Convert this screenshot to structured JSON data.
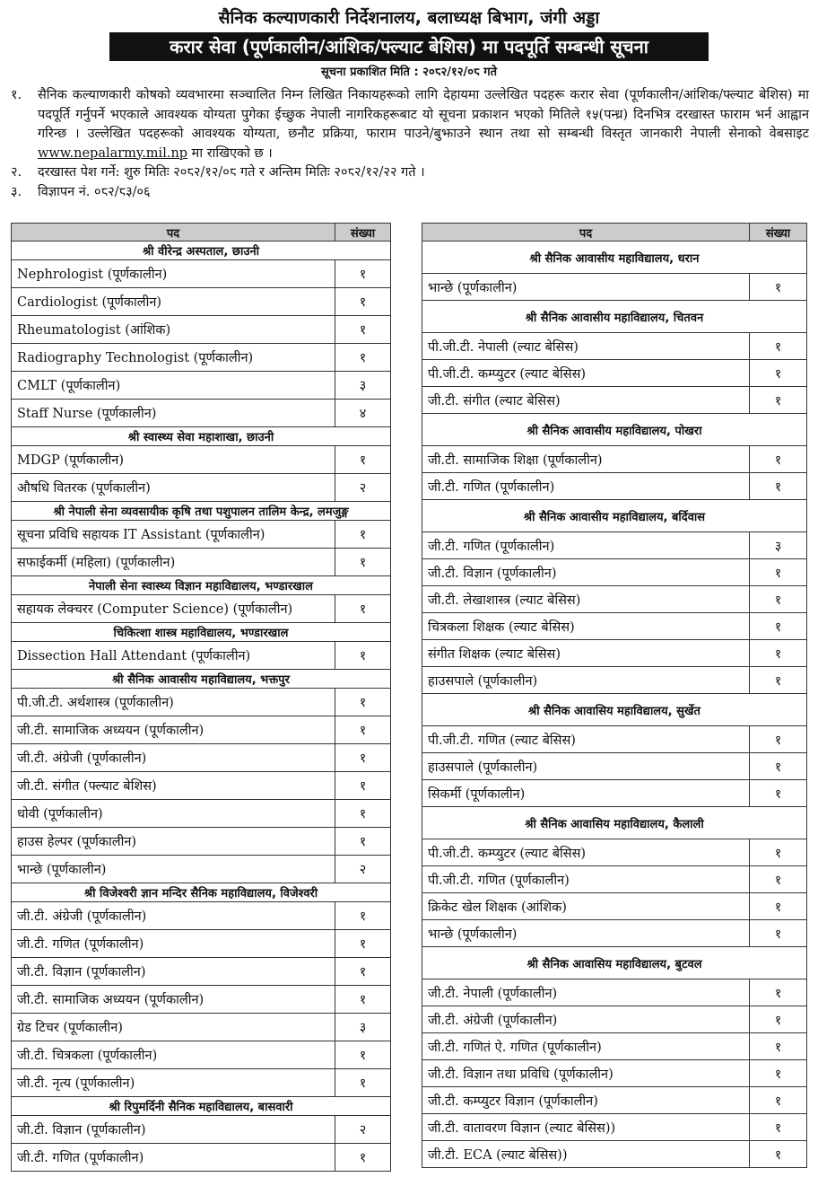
{
  "header": {
    "office": "सैनिक कल्याणकारी निर्देशनालय, बलाध्यक्ष बिभाग, जंगी अड्डा",
    "title": "करार सेवा (पूर्णकालीन/आंशिक/फ्ल्याट बेशिस) मा पदपूर्ति सम्बन्धी सूचना",
    "published_date": "सूचना प्रकाशित मिति : २०८२/१२/०८ गते"
  },
  "paragraphs": [
    {
      "number": "१.",
      "text": "सैनिक कल्याणकारी कोषको व्यवभारमा सञ्चालित निम्न लिखित निकायहरूको लागि देहायमा उल्लेखित पदहरू करार सेवा (पूर्णकालीन/आंशिक/फ्ल्याट बेशिस) मा पदपूर्ति गर्नुपर्ने भएकाले आवश्यक योग्यता पुगेका ईच्छुक नेपाली नागरिकहरूबाट यो सूचना प्रकाशन भएको मितिले १५(पन्ध्र) दिनभित्र दरखास्त फाराम भर्न आह्वान गरिन्छ । उल्लेखित पदहरूको आवश्यक योग्यता, छनौट प्रक्रिया, फाराम पाउने/बुझाउने स्थान तथा सो सम्बन्धी विस्तृत जानकारी नेपाली सेनाको वेबसाइट",
      "link": "www.nepalarmy.mil.np",
      "text_end": "मा राखिएको छ ।"
    },
    {
      "number": "२.",
      "text": "दरखास्त पेश गर्ने: शुरु मितिः २०८२/१२/०८ गते र अन्तिम मितिः २०८२/१२/२२ गते ।"
    },
    {
      "number": "३.",
      "text": "विज्ञापन नं. ०८२/८३/०६"
    }
  ],
  "tables": [
    {
      "columns": [
        "पद",
        "संख्या"
      ],
      "sections": [
        {
          "title": "श्री वीरेन्द्र अस्पताल, छाउनी",
          "rows": [
            [
              "Nephrologist (पूर्णकालीन)",
              "१"
            ],
            [
              "Cardiologist (पूर्णकालीन)",
              "१"
            ],
            [
              "Rheumatologist (आंशिक)",
              "१"
            ],
            [
              "Radiography Technologist (पूर्णकालीन)",
              "१"
            ],
            [
              "CMLT (पूर्णकालीन)",
              "३"
            ],
            [
              "Staff Nurse (पूर्णकालीन)",
              "४"
            ]
          ]
        },
        {
          "title": "श्री स्वास्थ्य सेवा महाशाखा, छाउनी",
          "rows": [
            [
              "MDGP (पूर्णकालीन)",
              "१"
            ],
            [
              "औषधि वितरक (पूर्णकालीन)",
              "२"
            ]
          ]
        },
        {
          "title": "श्री नेपाली सेना व्यवसायीक कृषि तथा पशुपालन तालिम केन्द्र, लमजुङ्ग",
          "rows": [
            [
              "सूचना प्रविधि सहायक IT Assistant (पूर्णकालीन)",
              "१"
            ],
            [
              "सफाईकर्मी (महिला) (पूर्णकालीन)",
              "१"
            ]
          ]
        },
        {
          "title": "नेपाली सेना स्वास्थ्य विज्ञान महाविद्यालय, भण्डारखाल",
          "rows": [
            [
              "सहायक लेक्चरर (Computer Science) (पूर्णकालीन)",
              "१"
            ]
          ]
        },
        {
          "title": "चिकित्शा शास्त्र महाविद्यालय, भण्डारखाल",
          "rows": [
            [
              "Dissection Hall Attendant (पूर्णकालीन)",
              "१"
            ]
          ]
        },
        {
          "title": "श्री सैनिक आवासीय महाविद्यालय, भक्तपुर",
          "rows": [
            [
              "पी.जी.टी. अर्थशास्त्र (पूर्णकालीन)",
              "१"
            ],
            [
              "जी.टी. सामाजिक अध्ययन (पूर्णकालीन)",
              "१"
            ],
            [
              "जी.टी. अंग्रेजी (पूर्णकालीन)",
              "१"
            ],
            [
              "जी.टी. संगीत (फ्ल्याट बेशिस)",
              "१"
            ],
            [
              "धोवी (पूर्णकालीन)",
              "१"
            ],
            [
              "हाउस हेल्पर (पूर्णकालीन)",
              "१"
            ],
            [
              "भान्छे (पूर्णकालीन)",
              "२"
            ]
          ]
        },
        {
          "title": "श्री विजेश्वरी ज्ञान मन्दिर सैनिक महाविद्यालय, विजेश्वरी",
          "rows": [
            [
              "जी.टी. अंग्रेजी (पूर्णकालीन)",
              "१"
            ],
            [
              "जी.टी. गणित (पूर्णकालीन)",
              "१"
            ],
            [
              "जी.टी. विज्ञान (पूर्णकालीन)",
              "१"
            ],
            [
              "जी.टी. सामाजिक अध्ययन (पूर्णकालीन)",
              "१"
            ],
            [
              "ग्रेड टिचर (पूर्णकालीन)",
              "३"
            ],
            [
              "जी.टी. चित्रकला (पूर्णकालीन)",
              "१"
            ],
            [
              "जी.टी. नृत्य (पूर्णकालीन)",
              "१"
            ]
          ]
        },
        {
          "title": "श्री रिपुमर्दिनी सैनिक महाविद्यालय, बासवारी",
          "rows": [
            [
              "जी.टी. विज्ञान (पूर्णकालीन)",
              "२"
            ],
            [
              "जी.टी. गणित (पूर्णकालीन)",
              "१"
            ]
          ]
        }
      ]
    },
    {
      "columns": [
        "पद",
        "संख्या"
      ],
      "sections": [
        {
          "title": "श्री सैनिक आवासीय महाविद्यालय, धरान",
          "rows": [
            [
              "भान्छे (पूर्णकालीन)",
              "१"
            ]
          ]
        },
        {
          "title": "श्री सैनिक आवासीय महाविद्यालय, चितवन",
          "rows": [
            [
              "पी.जी.टी. नेपाली (ल्याट बेसिस)",
              "१"
            ],
            [
              "पी.जी.टी. कम्प्युटर (ल्याट बेसिस)",
              "१"
            ],
            [
              "जी.टी. संगीत (ल्याट बेसिस)",
              "१"
            ]
          ]
        },
        {
          "title": "श्री सैनिक आवासीय महाविद्यालय, पोखरा",
          "rows": [
            [
              "जी.टी. सामाजिक शिक्षा (पूर्णकालीन)",
              "१"
            ],
            [
              "जी.टी. गणित (पूर्णकालीन)",
              "१"
            ]
          ]
        },
        {
          "title": "श्री सैनिक आवासीय महाविद्यालय,  बर्दिवास",
          "rows": [
            [
              "जी.टी. गणित (पूर्णकालीन)",
              "३"
            ],
            [
              "जी.टी. विज्ञान (पूर्णकालीन)",
              "१"
            ],
            [
              "जी.टी. लेखाशास्त्र (ल्याट बेसिस)",
              "१"
            ],
            [
              "चित्रकला शिक्षक (ल्याट बेसिस)",
              "१"
            ],
            [
              "संगीत शिक्षक (ल्याट बेसिस)",
              "१"
            ],
            [
              "हाउसपाले (पूर्णकालीन)",
              "१"
            ]
          ]
        },
        {
          "title": "श्री सैनिक आवासिय महाविद्यालय, सुर्खेत",
          "rows": [
            [
              "पी.जी.टी. गणित (ल्याट बेसिस)",
              "१"
            ],
            [
              "हाउसपाले (पूर्णकालीन)",
              "१"
            ],
            [
              "सिकर्मी (पूर्णकालीन)",
              "१"
            ]
          ]
        },
        {
          "title": "श्री सैनिक आवासिय महाविद्यालय, कैलाली",
          "rows": [
            [
              "पी.जी.टी. कम्प्युटर (ल्याट बेसिस)",
              "१"
            ],
            [
              "पी.जी.टी. गणित (पूर्णकालीन)",
              "१"
            ],
            [
              "क्रिकेट खेल शिक्षक (आंशिक)",
              "१"
            ],
            [
              "भान्छे (पूर्णकालीन)",
              "१"
            ]
          ]
        },
        {
          "title": "श्री सैनिक आवासिय महाविद्यालय, बुटवल",
          "rows": [
            [
              "जी.टी. नेपाली (पूर्णकालीन)",
              "१"
            ],
            [
              "जी.टी. अंग्रेजी (पूर्णकालीन)",
              "१"
            ],
            [
              "जी.टी. गणितं ऐ. गणित (पूर्णकालीन)",
              "१"
            ],
            [
              "जी.टी. विज्ञान तथा प्रविधि (पूर्णकालीन)",
              "१"
            ],
            [
              "जी.टी. कम्प्युटर विज्ञान (पूर्णकालीन)",
              "१"
            ],
            [
              "जी.टी. वातावरण विज्ञान (ल्याट बेसिस))",
              "१"
            ],
            [
              "जी.टी. ECA (ल्याट बेसिस))",
              "१"
            ]
          ]
        }
      ]
    }
  ]
}
